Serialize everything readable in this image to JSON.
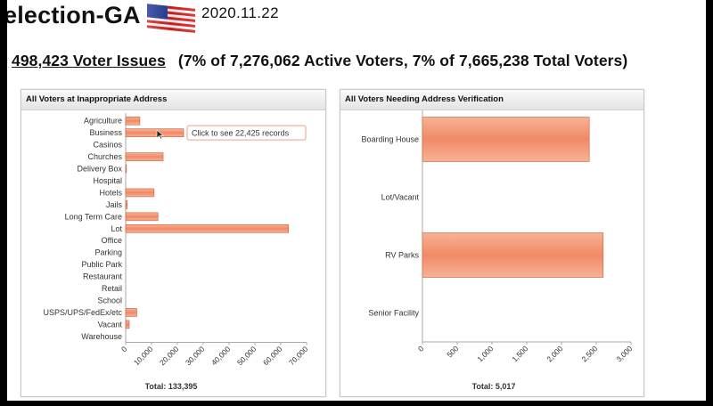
{
  "header": {
    "title": "election-GA",
    "date": "2020.11.22"
  },
  "summary": {
    "link_text": "498,423 Voter Issues",
    "detail_text": "(7% of 7,276,062 Active Voters, 7% of 7,665,238 Total Voters)"
  },
  "colors": {
    "bar": "#f08a66",
    "bar_light": "#f7b296",
    "bar_border": "#c9603a"
  },
  "left_panel": {
    "title": "All Voters at Inappropriate Address",
    "tooltip": "Click to see 22,425 records",
    "total_label": "Total:  133,395"
  },
  "right_panel": {
    "title": "All Voters Needing Address Verification",
    "total_label": "Total:  5,017"
  },
  "chart_data": [
    {
      "type": "bar",
      "orientation": "horizontal",
      "title": "All Voters at Inappropriate Address",
      "categories": [
        "Agriculture",
        "Business",
        "Casinos",
        "Churches",
        "Delivery Box",
        "Hospital",
        "Hotels",
        "Jails",
        "Long Term Care",
        "Lot",
        "Office",
        "Parking",
        "Public Park",
        "Restaurant",
        "Retail",
        "School",
        "USPS/UPS/FedEx/etc",
        "Vacant",
        "Warehouse"
      ],
      "values": [
        5500,
        22425,
        0,
        14500,
        300,
        0,
        11000,
        600,
        12500,
        63000,
        0,
        0,
        0,
        0,
        0,
        0,
        4300,
        1400,
        0
      ],
      "xlim": [
        0,
        70000
      ],
      "xticks": [
        "0",
        "10,000",
        "20,000",
        "30,000",
        "40,000",
        "50,000",
        "60,000",
        "70,000"
      ],
      "total": "133,395"
    },
    {
      "type": "bar",
      "orientation": "horizontal",
      "title": "All Voters Needing Address Verification",
      "categories": [
        "Boarding House",
        "Lot/Vacant",
        "RV Parks",
        "Senior Facility"
      ],
      "values": [
        2400,
        0,
        2600,
        0
      ],
      "xlim": [
        0,
        3000
      ],
      "xticks": [
        "0",
        "500",
        "1,000",
        "1,500",
        "2,000",
        "2,500",
        "3,000"
      ],
      "total": "5,017"
    }
  ]
}
